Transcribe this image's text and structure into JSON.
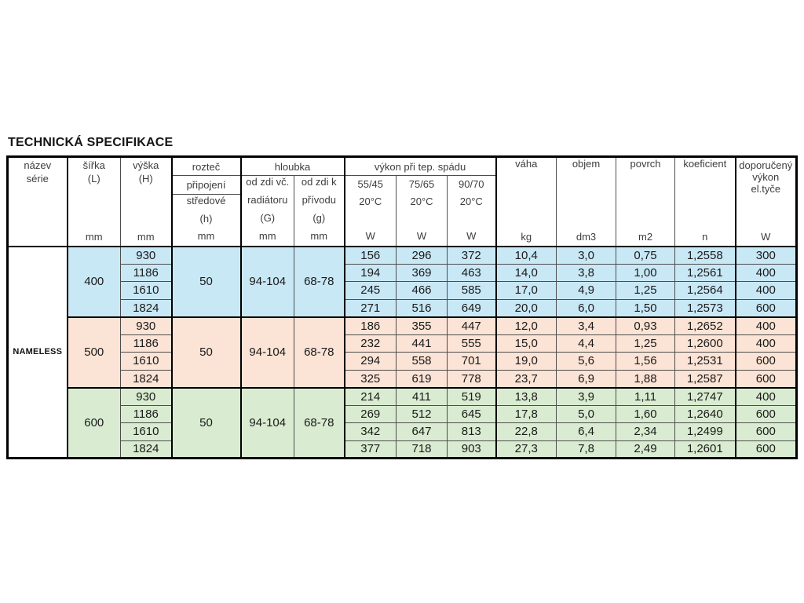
{
  "title": "TECHNICKÁ SPECIFIKACE",
  "table": {
    "series_name": "NAMELESS",
    "header": {
      "nazev": {
        "l1": "název",
        "l2": "série"
      },
      "sirka": {
        "l1": "šířka",
        "l2": "(L)",
        "unit": "mm"
      },
      "vyska": {
        "l1": "výška",
        "l2": "(H)",
        "unit": "mm"
      },
      "roztec": {
        "l1": "rozteč",
        "l2": "připojení",
        "l3": "středové",
        "l4": "(h)",
        "unit": "mm"
      },
      "hloubka": {
        "title": "hloubka",
        "g1": {
          "l1": "od zdi vč.",
          "l2": "radiátoru",
          "l3": "(G)",
          "unit": "mm"
        },
        "g2": {
          "l1": "od zdi k",
          "l2": "přívodu",
          "l3": "(g)",
          "unit": "mm"
        }
      },
      "vykon": {
        "title": "výkon při tep. spádu",
        "c1": {
          "l1": "55/45",
          "l2": "20°C",
          "unit": "W"
        },
        "c2": {
          "l1": "75/65",
          "l2": "20°C",
          "unit": "W"
        },
        "c3": {
          "l1": "90/70",
          "l2": "20°C",
          "unit": "W"
        }
      },
      "vaha": {
        "title": "váha",
        "unit": "kg"
      },
      "objem": {
        "title": "objem",
        "unit": "dm3"
      },
      "povrch": {
        "title": "povrch",
        "unit": "m2"
      },
      "koeficient": {
        "title": "koeficient",
        "unit": "n"
      },
      "doporuceny": {
        "l1": "doporučený",
        "l2": "výkon",
        "l3": "el.tyče",
        "unit": "W"
      }
    },
    "row_columns": [
      "výška (H) mm",
      "výkon 55/45 W",
      "výkon 75/65 W",
      "výkon 90/70 W",
      "váha kg",
      "objem dm3",
      "povrch m2",
      "koeficient n",
      "doporučený výkon el.tyče W"
    ],
    "groups": [
      {
        "sirka": "400",
        "roztec": "50",
        "hloubka_G": "94-104",
        "hloubka_g": "68-78",
        "color": "#c9e8f6",
        "rows": [
          [
            "930",
            "156",
            "296",
            "372",
            "10,4",
            "3,0",
            "0,75",
            "1,2558",
            "300"
          ],
          [
            "1186",
            "194",
            "369",
            "463",
            "14,0",
            "3,8",
            "1,00",
            "1,2561",
            "400"
          ],
          [
            "1610",
            "245",
            "466",
            "585",
            "17,0",
            "4,9",
            "1,25",
            "1,2564",
            "400"
          ],
          [
            "1824",
            "271",
            "516",
            "649",
            "20,0",
            "6,0",
            "1,50",
            "1,2573",
            "600"
          ]
        ]
      },
      {
        "sirka": "500",
        "roztec": "50",
        "hloubka_G": "94-104",
        "hloubka_g": "68-78",
        "color": "#fbe3d5",
        "rows": [
          [
            "930",
            "186",
            "355",
            "447",
            "12,0",
            "3,4",
            "0,93",
            "1,2652",
            "400"
          ],
          [
            "1186",
            "232",
            "441",
            "555",
            "15,0",
            "4,4",
            "1,25",
            "1,2600",
            "400"
          ],
          [
            "1610",
            "294",
            "558",
            "701",
            "19,0",
            "5,6",
            "1,56",
            "1,2531",
            "600"
          ],
          [
            "1824",
            "325",
            "619",
            "778",
            "23,7",
            "6,9",
            "1,88",
            "1,2587",
            "600"
          ]
        ]
      },
      {
        "sirka": "600",
        "roztec": "50",
        "hloubka_G": "94-104",
        "hloubka_g": "68-78",
        "color": "#d9ecd1",
        "rows": [
          [
            "930",
            "214",
            "411",
            "519",
            "13,8",
            "3,9",
            "1,11",
            "1,2747",
            "400"
          ],
          [
            "1186",
            "269",
            "512",
            "645",
            "17,8",
            "5,0",
            "1,60",
            "1,2640",
            "600"
          ],
          [
            "1610",
            "342",
            "647",
            "813",
            "22,8",
            "6,4",
            "2,34",
            "1,2499",
            "600"
          ],
          [
            "1824",
            "377",
            "718",
            "903",
            "27,3",
            "7,8",
            "2,49",
            "1,2601",
            "600"
          ]
        ]
      }
    ]
  }
}
